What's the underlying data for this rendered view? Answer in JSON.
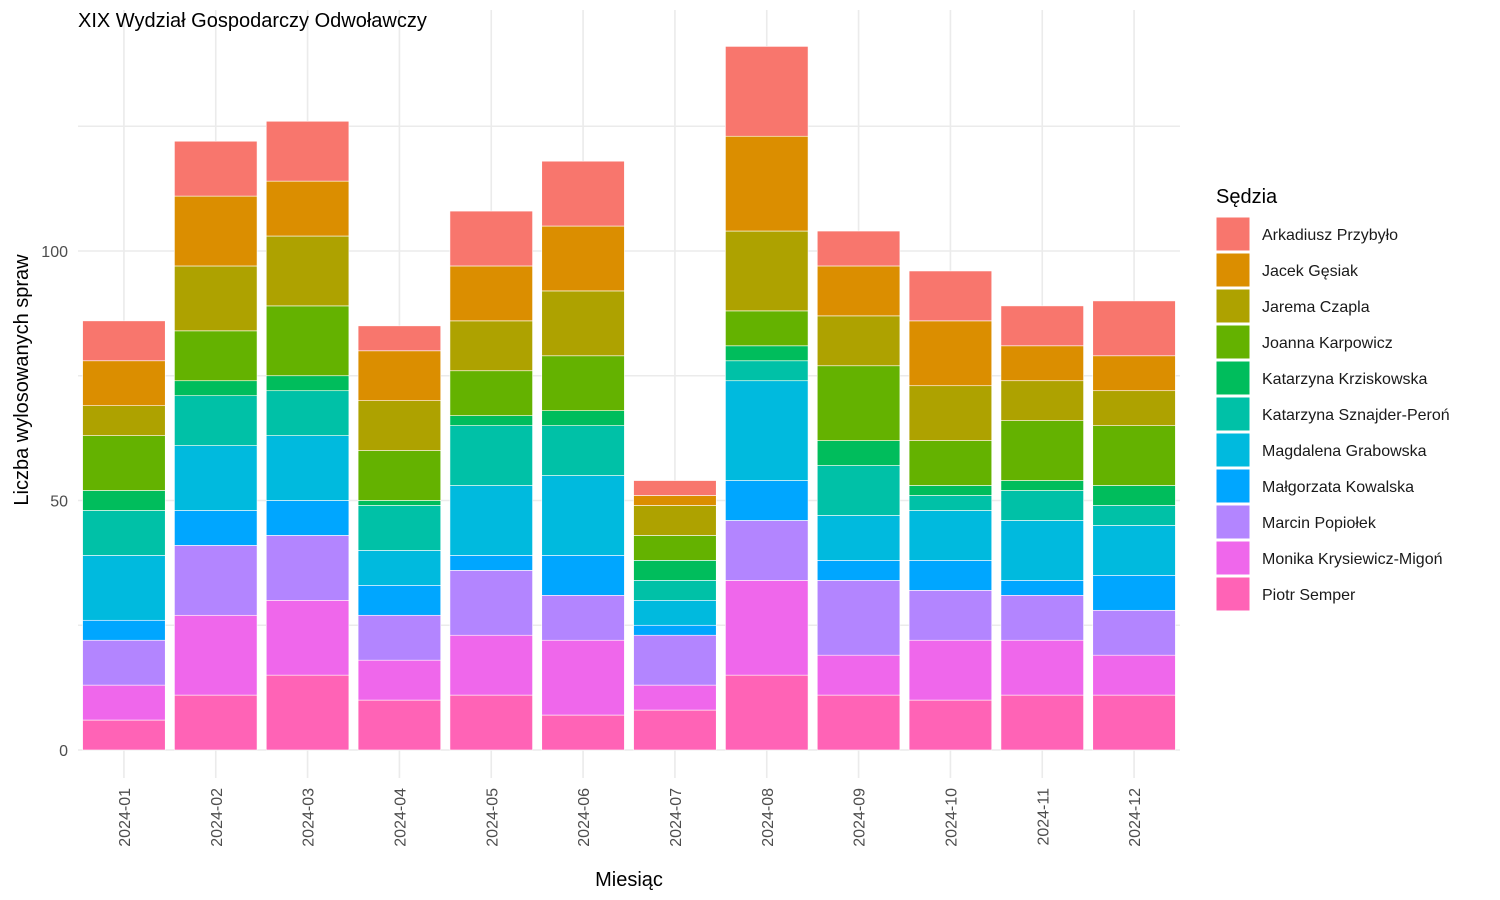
{
  "chart_data": {
    "type": "bar",
    "stacked": true,
    "title": "XIX Wydział Gospodarczy Odwoławczy",
    "xlabel": "Miesiąc",
    "ylabel": "Liczba wylosowanych spraw",
    "ylim": [
      0,
      148
    ],
    "yticks": [
      0,
      50,
      100
    ],
    "legend_title": "Sędzia",
    "legend_position": "right",
    "grid": true,
    "categories": [
      "2024-01",
      "2024-02",
      "2024-03",
      "2024-04",
      "2024-05",
      "2024-06",
      "2024-07",
      "2024-08",
      "2024-09",
      "2024-10",
      "2024-11",
      "2024-12"
    ],
    "series": [
      {
        "name": "Arkadiusz Przybyło",
        "color": "#F8766D",
        "values": [
          8,
          11,
          12,
          5,
          11,
          13,
          3,
          18,
          7,
          10,
          8,
          11
        ]
      },
      {
        "name": "Jacek Gęsiak",
        "color": "#DB8E00",
        "values": [
          9,
          14,
          11,
          10,
          11,
          13,
          2,
          19,
          10,
          13,
          7,
          7
        ]
      },
      {
        "name": "Jarema Czapla",
        "color": "#AEA200",
        "values": [
          6,
          13,
          14,
          10,
          10,
          13,
          6,
          16,
          10,
          11,
          8,
          7
        ]
      },
      {
        "name": "Joanna Karpowicz",
        "color": "#64B200",
        "values": [
          11,
          10,
          14,
          10,
          9,
          11,
          5,
          7,
          15,
          9,
          12,
          12
        ]
      },
      {
        "name": "Katarzyna Krziskowska",
        "color": "#00BD5C",
        "values": [
          4,
          3,
          3,
          1,
          2,
          3,
          4,
          3,
          5,
          2,
          2,
          4
        ]
      },
      {
        "name": "Katarzyna Sznajder-Peroń",
        "color": "#00C1A7",
        "values": [
          9,
          10,
          9,
          9,
          12,
          10,
          4,
          4,
          10,
          3,
          6,
          4
        ]
      },
      {
        "name": "Magdalena Grabowska",
        "color": "#00BADE",
        "values": [
          13,
          13,
          13,
          7,
          14,
          16,
          5,
          20,
          9,
          10,
          12,
          10
        ]
      },
      {
        "name": "Małgorzata Kowalska",
        "color": "#00A6FF",
        "values": [
          4,
          7,
          7,
          6,
          3,
          8,
          2,
          8,
          4,
          6,
          3,
          7
        ]
      },
      {
        "name": "Marcin Popiołek",
        "color": "#B385FF",
        "values": [
          9,
          14,
          13,
          9,
          13,
          9,
          10,
          12,
          15,
          10,
          9,
          9
        ]
      },
      {
        "name": "Monika Krysiewicz-Migoń",
        "color": "#EF67EB",
        "values": [
          7,
          16,
          15,
          8,
          12,
          15,
          5,
          19,
          8,
          12,
          11,
          8
        ]
      },
      {
        "name": "Piotr Semper",
        "color": "#FF63B6",
        "values": [
          6,
          11,
          15,
          10,
          11,
          7,
          8,
          15,
          11,
          10,
          11,
          11
        ]
      }
    ]
  }
}
